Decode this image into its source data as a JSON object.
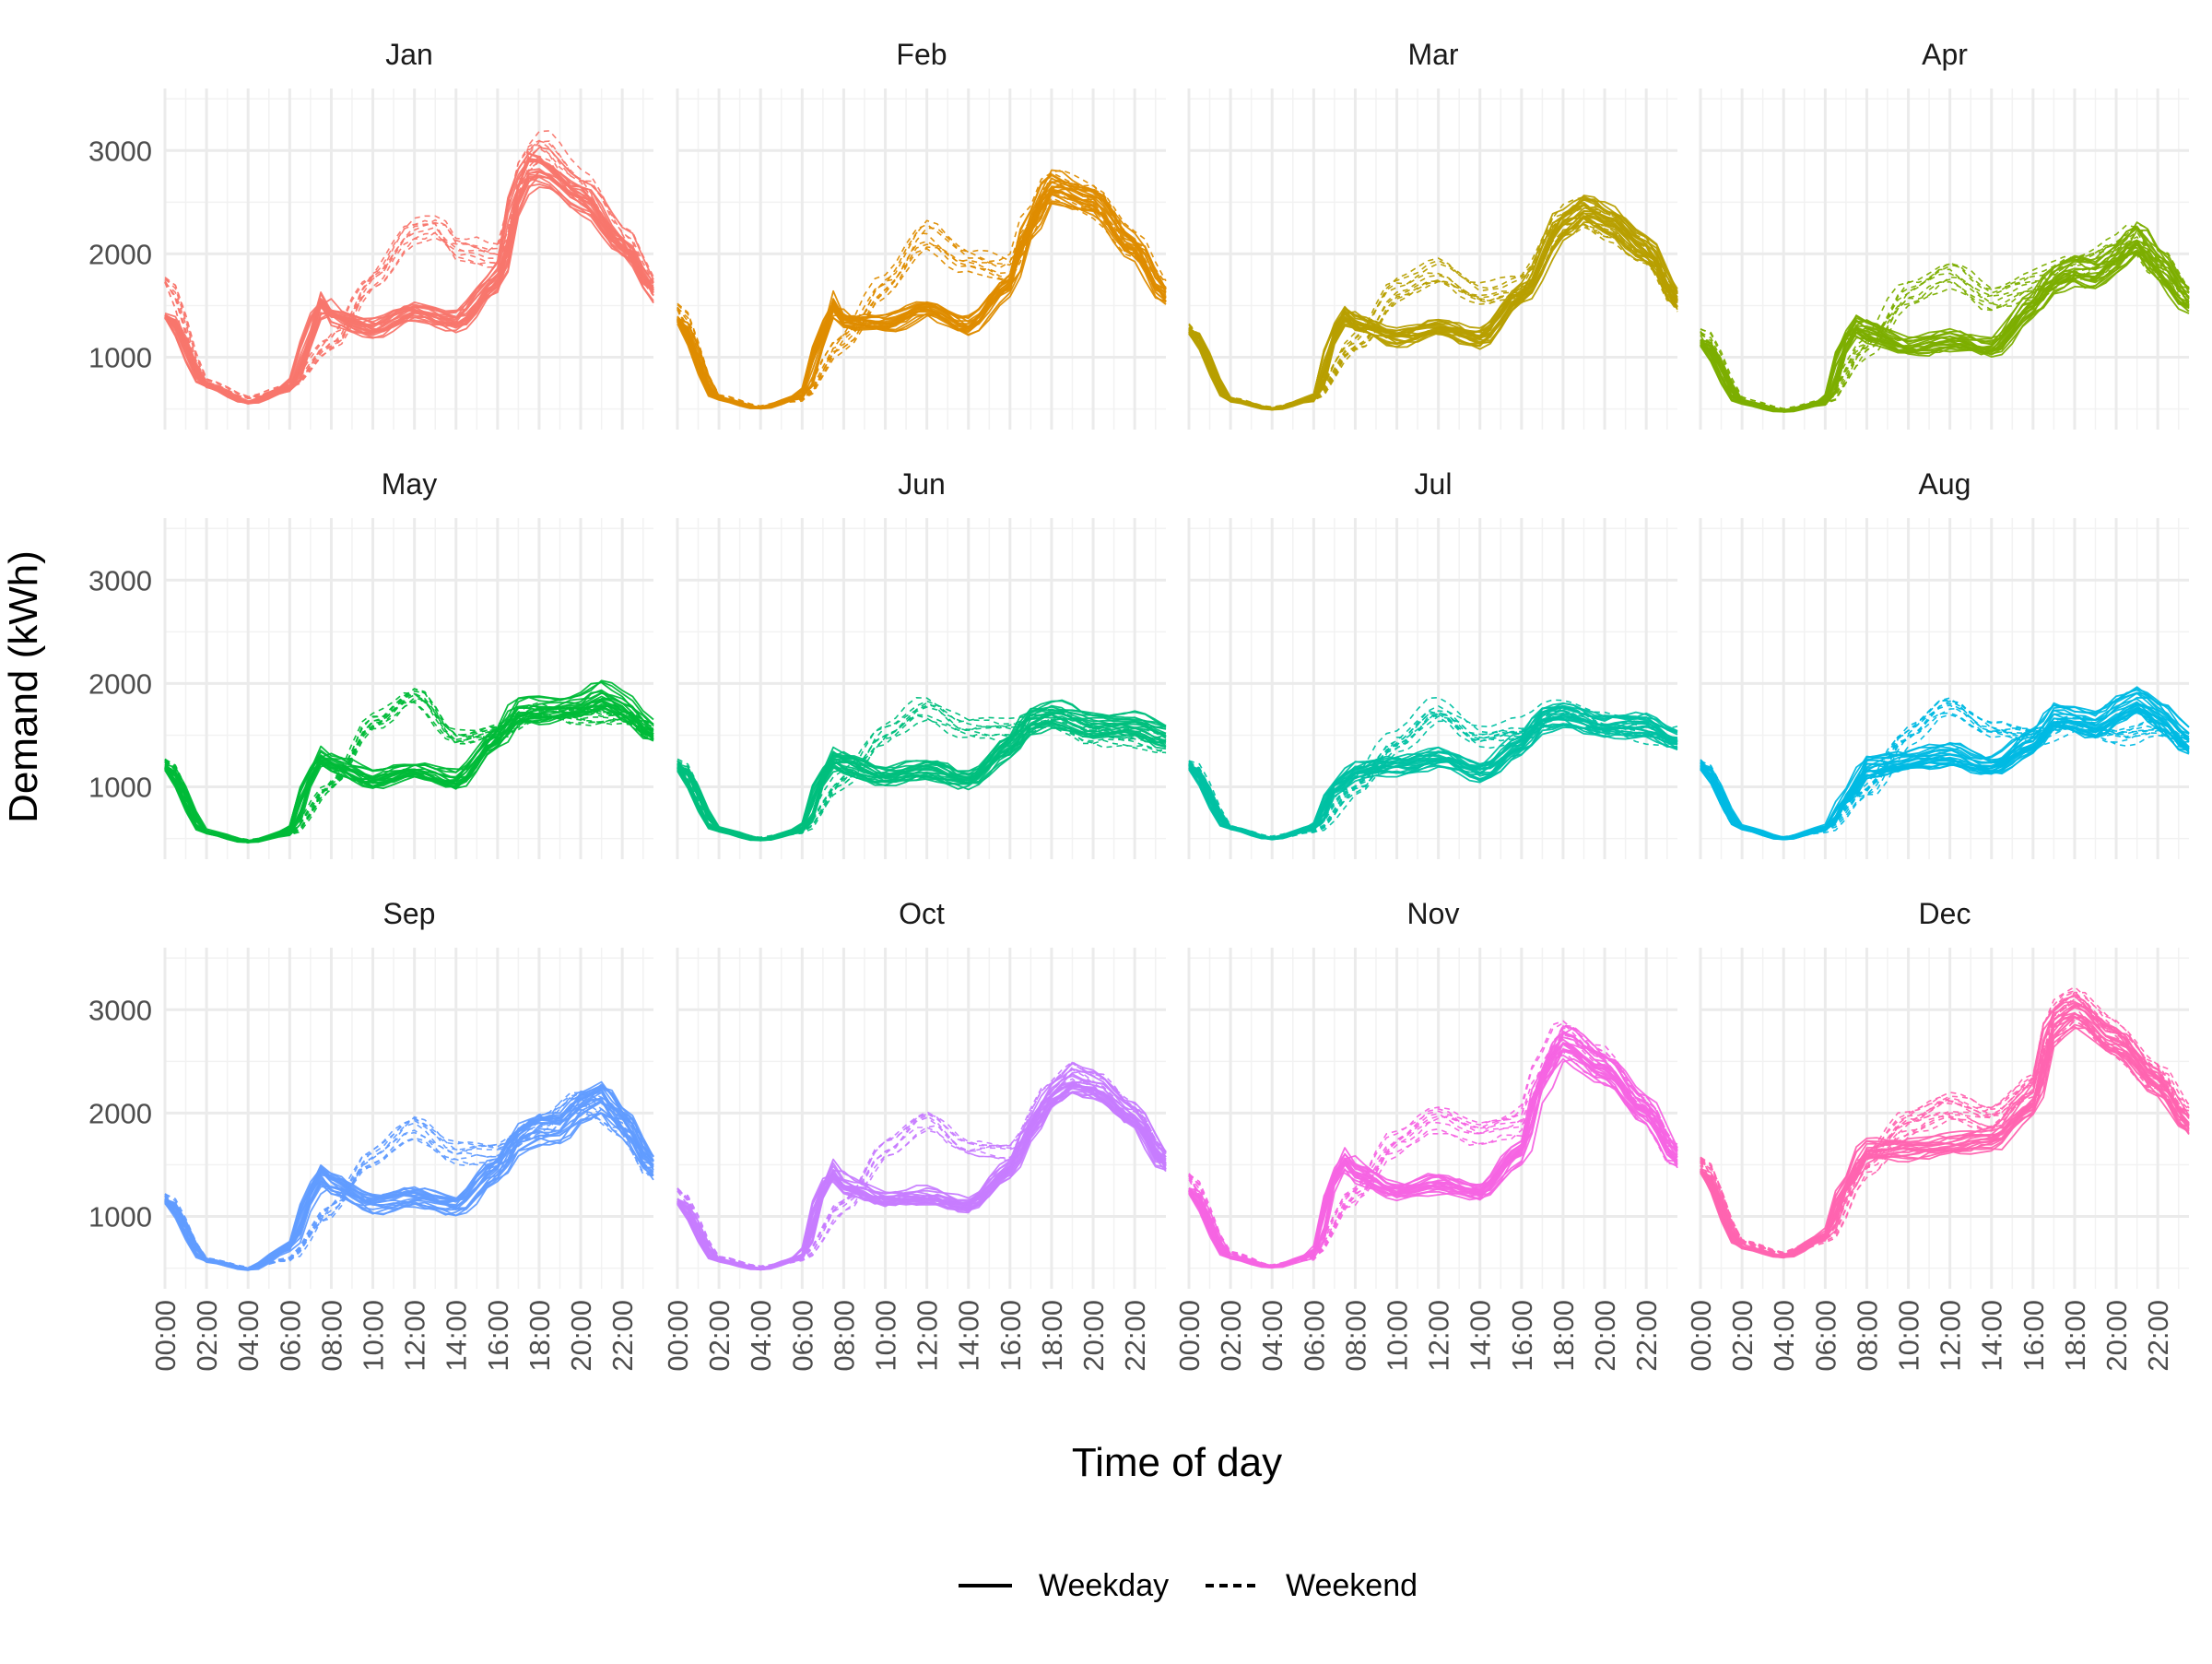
{
  "chart_data": {
    "type": "line",
    "xlabel": "Time of day",
    "ylabel": "Demand (kWh)",
    "x_ticks": [
      "00:00",
      "02:00",
      "04:00",
      "06:00",
      "08:00",
      "10:00",
      "12:00",
      "14:00",
      "16:00",
      "18:00",
      "20:00",
      "22:00"
    ],
    "x_range_hours": [
      0,
      23.5
    ],
    "x_step_hours": 0.5,
    "y_ticks": [
      1000,
      2000,
      3000
    ],
    "ylim": [
      300,
      3600
    ],
    "grid": true,
    "legend": {
      "position": "bottom",
      "entries": [
        {
          "label": "Weekday",
          "linestyle": "solid"
        },
        {
          "label": "Weekend",
          "linestyle": "dashed"
        }
      ]
    },
    "panels": [
      {
        "month": "Jan",
        "color": "#F8766D",
        "weekday_profile": {
          "hours": [
            0,
            2,
            4,
            6,
            7,
            7.5,
            8,
            10,
            12,
            14,
            16,
            17,
            17.5,
            18,
            20,
            22,
            23.5
          ],
          "values": [
            1400,
            720,
            560,
            700,
            1200,
            1580,
            1400,
            1280,
            1450,
            1350,
            1750,
            2600,
            2850,
            2830,
            2560,
            2100,
            1650
          ]
        },
        "weekend_profile": {
          "hours": [
            0,
            2,
            4,
            6,
            8,
            10,
            12,
            13,
            14,
            16,
            17.5,
            18,
            20,
            22,
            23.5
          ],
          "values": [
            1750,
            760,
            610,
            720,
            1150,
            1750,
            2250,
            2300,
            2050,
            2000,
            2950,
            3050,
            2700,
            2150,
            1700
          ]
        },
        "weekday_days": 22,
        "weekend_days": 9
      },
      {
        "month": "Feb",
        "color": "#DE8C00",
        "weekday_profile": {
          "hours": [
            0,
            2,
            4,
            6,
            7,
            7.5,
            8,
            10,
            12,
            14,
            16,
            17,
            18,
            20,
            22,
            23.5
          ],
          "values": [
            1380,
            600,
            510,
            620,
            1200,
            1560,
            1360,
            1340,
            1490,
            1320,
            1700,
            2300,
            2680,
            2550,
            2100,
            1620
          ]
        },
        "weekend_profile": {
          "hours": [
            0,
            2,
            4,
            6,
            8,
            10,
            12,
            14,
            16,
            17,
            18,
            20,
            22,
            23.5
          ],
          "values": [
            1500,
            620,
            520,
            600,
            1150,
            1700,
            2200,
            1950,
            1850,
            2300,
            2700,
            2550,
            2100,
            1650
          ]
        },
        "weekday_days": 20,
        "weekend_days": 8
      },
      {
        "month": "Mar",
        "color": "#B79F00",
        "weekday_profile": {
          "hours": [
            0,
            2,
            4,
            6,
            7,
            7.5,
            8,
            10,
            12,
            14,
            16,
            18,
            19,
            20,
            22,
            23.5
          ],
          "values": [
            1250,
            580,
            500,
            600,
            1250,
            1430,
            1330,
            1200,
            1290,
            1190,
            1620,
            2300,
            2450,
            2350,
            2050,
            1560
          ]
        },
        "weekend_profile": {
          "hours": [
            0,
            2,
            4,
            6,
            8,
            10,
            12,
            14,
            16,
            18,
            19,
            20,
            22,
            23.5
          ],
          "values": [
            1300,
            600,
            510,
            600,
            1150,
            1650,
            1850,
            1600,
            1700,
            2300,
            2400,
            2300,
            2000,
            1550
          ]
        },
        "weekday_days": 22,
        "weekend_days": 9
      },
      {
        "month": "Apr",
        "color": "#7CAE00",
        "weekday_profile": {
          "hours": [
            0,
            2,
            4,
            6,
            7,
            7.5,
            8,
            10,
            12,
            14,
            16,
            17,
            18,
            19,
            20,
            21,
            22,
            23.5
          ],
          "values": [
            1150,
            560,
            480,
            560,
            1150,
            1330,
            1250,
            1100,
            1170,
            1090,
            1500,
            1750,
            1850,
            1800,
            1950,
            2150,
            1900,
            1550
          ]
        },
        "weekend_profile": {
          "hours": [
            0,
            2,
            4,
            6,
            8,
            10,
            12,
            14,
            16,
            18,
            20,
            21,
            22,
            23.5
          ],
          "values": [
            1250,
            580,
            490,
            560,
            1100,
            1600,
            1800,
            1550,
            1700,
            1850,
            2000,
            2150,
            1900,
            1550
          ]
        },
        "weekday_days": 21,
        "weekend_days": 9
      },
      {
        "month": "May",
        "color": "#00BA38",
        "weekday_profile": {
          "hours": [
            0,
            2,
            4,
            6,
            7,
            7.5,
            8,
            10,
            12,
            14,
            16,
            17,
            18,
            20,
            21,
            22,
            23.5
          ],
          "values": [
            1200,
            560,
            470,
            560,
            1100,
            1320,
            1250,
            1080,
            1180,
            1070,
            1500,
            1750,
            1750,
            1800,
            1900,
            1800,
            1550
          ]
        },
        "weekend_profile": {
          "hours": [
            0,
            2,
            4,
            6,
            8,
            10,
            12,
            14,
            16,
            18,
            20,
            22,
            23.5
          ],
          "values": [
            1250,
            560,
            480,
            540,
            1000,
            1600,
            1850,
            1450,
            1500,
            1700,
            1650,
            1650,
            1500
          ]
        },
        "weekday_days": 21,
        "weekend_days": 10
      },
      {
        "month": "Jun",
        "color": "#00BF7D",
        "weekday_profile": {
          "hours": [
            0,
            2,
            4,
            6,
            7,
            7.5,
            8,
            10,
            12,
            14,
            16,
            17,
            18,
            20,
            22,
            23.5
          ],
          "values": [
            1200,
            580,
            490,
            580,
            1100,
            1290,
            1230,
            1100,
            1180,
            1070,
            1400,
            1650,
            1700,
            1600,
            1600,
            1500
          ]
        },
        "weekend_profile": {
          "hours": [
            0,
            2,
            4,
            6,
            8,
            10,
            12,
            14,
            16,
            18,
            20,
            22,
            23.5
          ],
          "values": [
            1250,
            580,
            500,
            560,
            1050,
            1500,
            1750,
            1550,
            1550,
            1650,
            1500,
            1450,
            1400
          ]
        },
        "weekday_days": 22,
        "weekend_days": 8
      },
      {
        "month": "Jul",
        "color": "#00C1A3",
        "weekday_profile": {
          "hours": [
            0,
            2,
            4,
            6,
            7,
            8,
            10,
            12,
            14,
            16,
            17,
            18,
            20,
            22,
            23.5
          ],
          "values": [
            1200,
            600,
            500,
            600,
            1000,
            1150,
            1200,
            1280,
            1140,
            1400,
            1650,
            1700,
            1580,
            1600,
            1450
          ]
        },
        "weekend_profile": {
          "hours": [
            0,
            2,
            4,
            6,
            8,
            10,
            12,
            14,
            16,
            18,
            20,
            22,
            23.5
          ],
          "values": [
            1250,
            600,
            510,
            580,
            1000,
            1450,
            1750,
            1500,
            1550,
            1750,
            1600,
            1550,
            1450
          ]
        },
        "weekday_days": 21,
        "weekend_days": 10
      },
      {
        "month": "Aug",
        "color": "#00B9E3",
        "weekday_profile": {
          "hours": [
            0,
            2,
            4,
            6,
            7,
            8,
            10,
            12,
            14,
            16,
            17,
            18,
            19,
            20,
            21,
            22,
            23.5
          ],
          "values": [
            1200,
            600,
            500,
            600,
            900,
            1200,
            1260,
            1320,
            1200,
            1450,
            1700,
            1650,
            1600,
            1750,
            1850,
            1700,
            1450
          ]
        },
        "weekend_profile": {
          "hours": [
            0,
            2,
            4,
            6,
            8,
            10,
            12,
            14,
            16,
            18,
            20,
            22,
            23.5
          ],
          "values": [
            1250,
            600,
            510,
            580,
            950,
            1500,
            1800,
            1550,
            1500,
            1600,
            1500,
            1550,
            1450
          ]
        },
        "weekday_days": 22,
        "weekend_days": 9
      },
      {
        "month": "Sep",
        "color": "#619CFF",
        "weekday_profile": {
          "hours": [
            0,
            2,
            4,
            6,
            7,
            7.5,
            8,
            10,
            12,
            14,
            16,
            17,
            18,
            19,
            20,
            21,
            22,
            23.5
          ],
          "values": [
            1150,
            570,
            490,
            700,
            1200,
            1420,
            1300,
            1120,
            1180,
            1100,
            1450,
            1750,
            1850,
            1850,
            2050,
            2150,
            1900,
            1480
          ]
        },
        "weekend_profile": {
          "hours": [
            0,
            2,
            4,
            6,
            8,
            10,
            12,
            14,
            16,
            18,
            20,
            22,
            23.5
          ],
          "values": [
            1200,
            580,
            500,
            580,
            1050,
            1550,
            1850,
            1600,
            1600,
            1850,
            2100,
            1900,
            1450
          ]
        },
        "weekday_days": 21,
        "weekend_days": 9
      },
      {
        "month": "Oct",
        "color": "#C77CFF",
        "weekday_profile": {
          "hours": [
            0,
            2,
            4,
            6,
            7,
            7.5,
            8,
            10,
            12,
            14,
            16,
            17,
            18,
            19,
            20,
            22,
            23.5
          ],
          "values": [
            1150,
            570,
            490,
            600,
            1250,
            1450,
            1300,
            1160,
            1190,
            1100,
            1450,
            1850,
            2150,
            2300,
            2250,
            1950,
            1520
          ]
        },
        "weekend_profile": {
          "hours": [
            0,
            2,
            4,
            6,
            8,
            10,
            12,
            14,
            16,
            18,
            19,
            20,
            22,
            23.5
          ],
          "values": [
            1250,
            600,
            510,
            580,
            1100,
            1600,
            1900,
            1600,
            1600,
            2150,
            2350,
            2250,
            1950,
            1550
          ]
        },
        "weekday_days": 23,
        "weekend_days": 8
      },
      {
        "month": "Nov",
        "color": "#F564E3",
        "weekday_profile": {
          "hours": [
            0,
            2,
            4,
            6,
            7,
            7.5,
            8,
            10,
            12,
            14,
            16,
            17,
            18,
            20,
            22,
            23.5
          ],
          "values": [
            1250,
            600,
            510,
            620,
            1350,
            1550,
            1400,
            1230,
            1300,
            1220,
            1600,
            2300,
            2650,
            2400,
            2000,
            1550
          ]
        },
        "weekend_profile": {
          "hours": [
            0,
            2,
            4,
            6,
            8,
            10,
            12,
            14,
            16,
            17,
            18,
            20,
            22,
            23.5
          ],
          "values": [
            1400,
            650,
            520,
            600,
            1200,
            1700,
            1950,
            1800,
            1900,
            2400,
            2750,
            2500,
            2050,
            1600
          ]
        },
        "weekday_days": 21,
        "weekend_days": 9
      },
      {
        "month": "Dec",
        "color": "#FF64B0",
        "weekday_profile": {
          "hours": [
            0,
            2,
            4,
            6,
            7,
            8,
            10,
            12,
            14,
            16,
            17,
            18,
            20,
            22,
            23.5
          ],
          "values": [
            1450,
            700,
            610,
            800,
            1300,
            1650,
            1650,
            1700,
            1750,
            2100,
            2850,
            3000,
            2700,
            2300,
            1900
          ]
        },
        "weekend_profile": {
          "hours": [
            0,
            2,
            4,
            6,
            8,
            10,
            12,
            14,
            16,
            17,
            18,
            20,
            22,
            23.5
          ],
          "values": [
            1550,
            750,
            640,
            780,
            1500,
            1900,
            2050,
            1950,
            2200,
            2900,
            3050,
            2700,
            2350,
            1950
          ]
        },
        "weekday_days": 18,
        "weekend_days": 13
      }
    ]
  }
}
